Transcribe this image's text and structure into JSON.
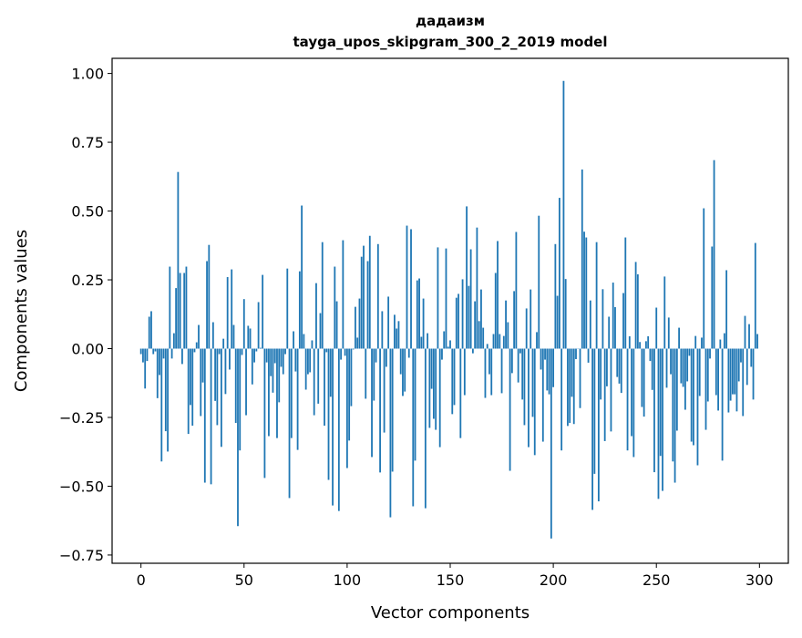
{
  "chart_data": {
    "type": "bar",
    "title": "дадаизм",
    "subtitle": "tayga_upos_skipgram_300_2_2019 model",
    "xlabel": "Vector components",
    "ylabel": "Components values",
    "xlim": [
      -14,
      314
    ],
    "ylim": [
      -0.78,
      1.055
    ],
    "xticks": [
      0,
      50,
      100,
      150,
      200,
      250,
      300
    ],
    "xtick_labels": [
      "0",
      "50",
      "100",
      "150",
      "200",
      "250",
      "300"
    ],
    "yticks": [
      -0.75,
      -0.5,
      -0.25,
      0,
      0.25,
      0.5,
      0.75,
      1.0
    ],
    "ytick_labels": [
      "−0.75",
      "−0.50",
      "−0.25",
      "0.00",
      "0.25",
      "0.50",
      "0.75",
      "1.00"
    ],
    "grid": false,
    "bar_color": "#1f77b4",
    "values": [
      -0.02,
      -0.05,
      -0.145,
      -0.045,
      0.116,
      0.136,
      -0.02,
      -0.01,
      -0.18,
      -0.096,
      -0.41,
      -0.036,
      -0.3,
      -0.374,
      0.298,
      -0.036,
      0.056,
      0.22,
      0.642,
      0.275,
      -0.056,
      0.275,
      0.298,
      -0.31,
      -0.205,
      -0.28,
      -0.013,
      0.023,
      0.086,
      -0.245,
      -0.123,
      -0.487,
      0.318,
      0.377,
      -0.493,
      0.096,
      -0.19,
      -0.278,
      -0.02,
      -0.357,
      0.036,
      -0.165,
      0.26,
      -0.076,
      0.288,
      0.086,
      -0.27,
      -0.645,
      -0.37,
      -0.023,
      0.18,
      -0.242,
      0.083,
      0.073,
      -0.13,
      -0.05,
      -0.01,
      0.169,
      0.003,
      0.268,
      -0.47,
      -0.05,
      -0.318,
      -0.1,
      -0.16,
      -0.053,
      -0.325,
      -0.195,
      -0.066,
      -0.093,
      -0.02,
      0.291,
      -0.543,
      -0.325,
      0.063,
      -0.083,
      -0.368,
      0.281,
      0.52,
      0.053,
      -0.149,
      -0.093,
      -0.086,
      0.03,
      -0.242,
      0.238,
      -0.2,
      0.129,
      0.387,
      -0.28,
      -0.013,
      -0.477,
      -0.175,
      -0.57,
      0.298,
      0.172,
      -0.59,
      -0.04,
      0.394,
      -0.026,
      -0.434,
      -0.334,
      -0.209,
      -0.003,
      0.152,
      0.04,
      0.182,
      0.334,
      0.374,
      -0.182,
      0.318,
      0.41,
      -0.394,
      -0.189,
      -0.05,
      0.38,
      -0.45,
      0.136,
      -0.305,
      -0.066,
      0.189,
      -0.613,
      -0.447,
      0.123,
      0.073,
      0.1,
      -0.093,
      -0.172,
      -0.156,
      0.447,
      -0.033,
      0.434,
      -0.573,
      -0.407,
      0.248,
      0.255,
      0.043,
      0.182,
      -0.58,
      0.056,
      -0.288,
      -0.146,
      -0.255,
      -0.295,
      0.368,
      -0.358,
      -0.04,
      0.063,
      0.364,
      0.007,
      0.03,
      -0.238,
      -0.205,
      0.185,
      0.199,
      -0.325,
      0.252,
      -0.169,
      0.517,
      0.228,
      0.361,
      -0.017,
      0.172,
      0.44,
      0.1,
      0.215,
      0.076,
      -0.179,
      0.017,
      -0.093,
      -0.169,
      0.053,
      0.275,
      0.391,
      0.053,
      -0.162,
      0.046,
      0.175,
      0.096,
      -0.444,
      -0.089,
      0.209,
      0.424,
      -0.123,
      -0.017,
      -0.185,
      -0.278,
      0.146,
      -0.358,
      0.215,
      -0.248,
      -0.387,
      0.06,
      0.483,
      -0.076,
      -0.338,
      -0.04,
      -0.152,
      -0.166,
      -0.69,
      -0.14,
      0.38,
      0.192,
      0.548,
      -0.37,
      0.973,
      0.253,
      -0.281,
      -0.27,
      -0.175,
      -0.274,
      -0.038,
      0.0,
      -0.216,
      0.651,
      0.425,
      0.404,
      -0.051,
      0.175,
      -0.586,
      -0.455,
      0.387,
      -0.555,
      -0.185,
      0.216,
      -0.336,
      -0.137,
      0.116,
      -0.301,
      0.24,
      0.151,
      -0.103,
      -0.127,
      -0.161,
      0.202,
      0.404,
      -0.37,
      0.045,
      -0.318,
      -0.394,
      0.315,
      0.27,
      0.024,
      -0.212,
      -0.247,
      0.027,
      0.045,
      -0.045,
      -0.15,
      -0.449,
      0.149,
      -0.546,
      -0.39,
      -0.517,
      0.262,
      -0.142,
      0.113,
      -0.093,
      -0.41,
      -0.487,
      -0.298,
      0.076,
      -0.126,
      -0.139,
      -0.222,
      -0.119,
      -0.026,
      -0.338,
      -0.351,
      0.046,
      -0.424,
      -0.172,
      0.04,
      0.51,
      -0.295,
      -0.192,
      -0.036,
      0.371,
      0.685,
      -0.169,
      -0.225,
      0.033,
      -0.407,
      0.056,
      0.285,
      -0.232,
      -0.189,
      -0.166,
      -0.166,
      -0.228,
      -0.119,
      -0.05,
      -0.245,
      0.119,
      -0.132,
      0.089,
      -0.066,
      -0.185,
      0.384,
      0.053
    ]
  }
}
